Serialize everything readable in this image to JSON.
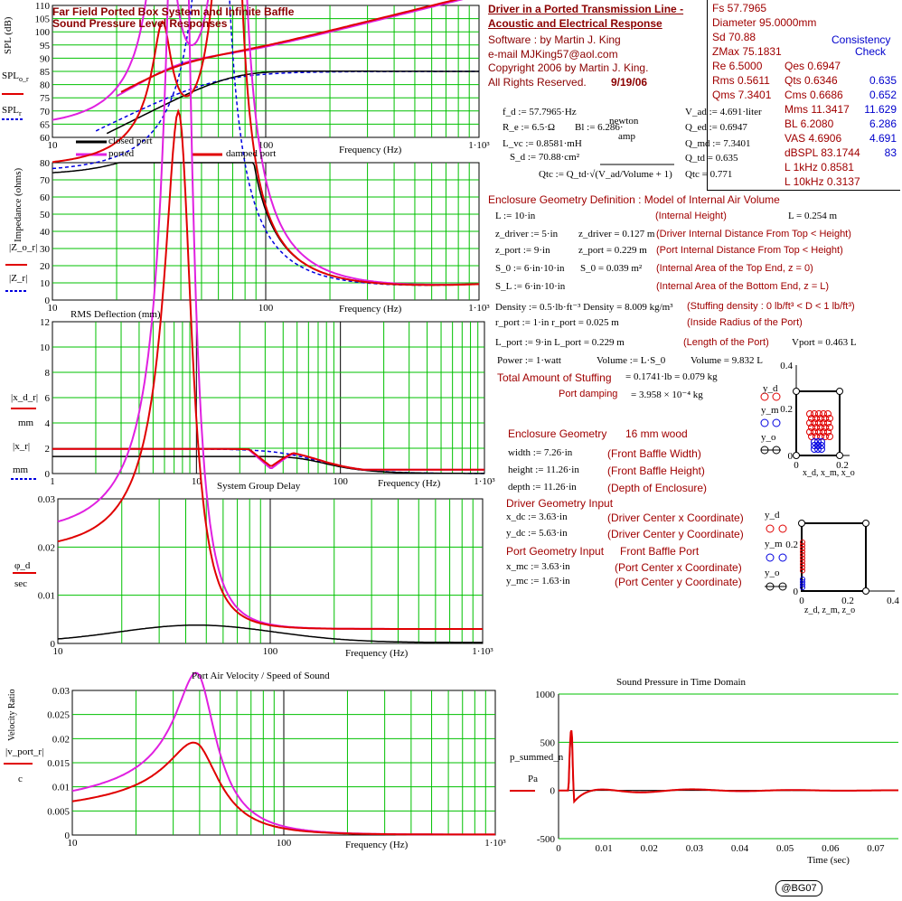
{
  "spl_panel": {
    "title_line1": "Far Field Ported Box System and Infinite Baffle",
    "title_line2": "Sound Pressure Level Responses",
    "ylabel": "SPL (dB)",
    "label_spl_o": "SPL",
    "label_spl_o_sub": "o_r",
    "label_spl_r": "SPL",
    "label_spl_r_sub": "r",
    "yticks": [
      "110",
      "105",
      "100",
      "95",
      "90",
      "85",
      "80",
      "75",
      "70",
      "65",
      "60"
    ],
    "xticks": [
      "10",
      "100",
      "1·10³"
    ],
    "xlabel": "Frequency (Hz)",
    "legend": [
      "closed port",
      "ported",
      "damped port"
    ]
  },
  "imp_panel": {
    "ylabel": "Impedance (ohms)",
    "label1": "|Z_o_r|",
    "label2": "|Z_r|",
    "yticks": [
      "80",
      "70",
      "60",
      "50",
      "40",
      "30",
      "20",
      "10",
      "0"
    ],
    "xticks": [
      "10",
      "100",
      "1·10³"
    ],
    "xlabel": "Frequency (Hz)"
  },
  "rms_panel": {
    "title": "RMS Deflection (mm)",
    "label1": "|x_d_r|",
    "label2": "|x_r|",
    "unit": "mm",
    "yticks": [
      "12",
      "10",
      "8",
      "6",
      "4",
      "2",
      "0"
    ],
    "xticks": [
      "1",
      "10",
      "100",
      "1·10³"
    ],
    "xlabel": "Frequency (Hz)"
  },
  "gd_panel": {
    "title": "System Group Delay",
    "label": "φ_d",
    "unit": "sec",
    "yticks": [
      "0.03",
      "0.02",
      "0.01",
      "0"
    ],
    "xticks": [
      "10",
      "100",
      "1·10³"
    ],
    "xlabel": "Frequency (Hz)"
  },
  "vel_panel": {
    "title": "Port Air Velocity / Speed of Sound",
    "ylabel": "Velocity Ratio",
    "label": "|v_port_r|",
    "unit": "c",
    "yticks": [
      "0.03",
      "0.025",
      "0.02",
      "0.015",
      "0.01",
      "0.005",
      "0"
    ],
    "xticks": [
      "10",
      "100",
      "1·10³"
    ],
    "xlabel": "Frequency (Hz)"
  },
  "time_panel": {
    "title": "Sound Pressure in Time Domain",
    "label": "p_summed_n",
    "unit": "Pa",
    "yticks": [
      "1000",
      "500",
      "0",
      "-500"
    ],
    "xticks": [
      "0",
      "0.01",
      "0.02",
      "0.03",
      "0.04",
      "0.05",
      "0.06",
      "0.07"
    ],
    "xlabel": "Time (sec)"
  },
  "header": {
    "title_line1": "Driver in a Ported Transmission Line -",
    "title_line2": "Acoustic and Electrical Response",
    "software": "Software :      by        Martin J. King",
    "email": "e-mail  MJKing57@aol.com",
    "copyright": "Copyright 2006 by Martin J. King.",
    "rights": "All Rights Reserved.",
    "date": "9/19/06"
  },
  "params": {
    "fs": "Fs 57.7965",
    "diameter": "Diameter 95.0000mm",
    "sd": "Sd 70.88",
    "zmax": "ZMax 75.1831",
    "consistency": "Consistency",
    "check": "Check",
    "rows": [
      {
        "a": "Re 6.5000",
        "b": "Qes 0.6947",
        "c": ""
      },
      {
        "a": "Rms 0.5611",
        "b": "Qts 0.6346",
        "c": "0.635"
      },
      {
        "a": "Qms 7.3401",
        "b": "Cms 0.6686",
        "c": "0.652"
      },
      {
        "a": "",
        "b": "Mms 11.3417",
        "c": "11.629"
      },
      {
        "a": "",
        "b": "BL 6.2080",
        "c": "6.286"
      },
      {
        "a": "",
        "b": "VAS 4.6906",
        "c": "4.691"
      },
      {
        "a": "",
        "b": "dBSPL 83.1744",
        "c": "83"
      },
      {
        "a": "",
        "b": "L 1kHz 0.8581",
        "c": ""
      },
      {
        "a": "",
        "b": "L 10kHz 0.3137",
        "c": ""
      }
    ]
  },
  "driver_params": {
    "fd": "f_d := 57.7965·Hz",
    "re": "R_e := 6.5·Ω",
    "bl": "Bl := 6.286·",
    "bl_unit_top": "newton",
    "bl_unit_bot": "amp",
    "lvc": "L_vc := 0.8581·mH",
    "sd": "S_d := 70.88·cm²",
    "vad": "V_ad := 4.691·liter",
    "qed": "Q_ed := 0.6947",
    "qmd": "Q_md := 7.3401",
    "qtd": "Q_td = 0.635",
    "qtc_formula": "Qtc := Q_td·√(V_ad/Volume + 1)",
    "qtc": "Qtc = 0.771"
  },
  "enclosure": {
    "title": "Enclosure Geometry Definition : Model of Internal Air Volume",
    "rows": [
      {
        "l": "L := 10·in",
        "m": "",
        "r": "(Internal Height)",
        "v": "L = 0.254 m"
      },
      {
        "l": "z_driver := 5·in",
        "m": "z_driver = 0.127 m",
        "r": "(Driver Internal Distance From Top < Height)",
        "v": ""
      },
      {
        "l": "z_port := 9·in",
        "m": "z_port = 0.229 m",
        "r": "(Port Internal Distance From Top < Height)",
        "v": ""
      },
      {
        "l": "S_0 := 6·in·10·in",
        "m": "S_0 = 0.039 m²",
        "r": "(Internal Area of the Top End, z = 0)",
        "v": ""
      },
      {
        "l": "S_L := 6·in·10·in",
        "m": "",
        "r": "(Internal Area of the Bottom End, z = L)",
        "v": ""
      }
    ],
    "density": "Density := 0.5·lb·ft⁻³  Density = 8.009 kg/m³",
    "density_note": "(Stuffing density : 0 lb/ft³ < D < 1 lb/ft³)",
    "rport": "r_port := 1·in          r_port = 0.025 m",
    "rport_note": "(Inside Radius of the Port)",
    "lport": "L_port := 9·in          L_port = 0.229 m",
    "lport_note": "(Length of the Port)",
    "vport": "Vport = 0.463 L",
    "power": "Power := 1·watt",
    "volume": "Volume := L·S_0",
    "volume_val": "Volume = 9.832 L",
    "stuffing_label": "Total Amount of Stuffing",
    "stuffing_val": "= 0.1741·lb = 0.079 kg",
    "damping_label": "Port damping",
    "damping_val": "= 3.958 × 10⁻⁴ kg"
  },
  "geometry": {
    "title": "Enclosure Geometry",
    "wood": "16 mm wood",
    "rows": [
      {
        "l": "width := 7.26·in",
        "r": "(Front Baffle Width)"
      },
      {
        "l": "height := 11.26·in",
        "r": "(Front Baffle Height)"
      },
      {
        "l": "depth := 11.26·in",
        "r": "(Depth of Enclosure)"
      }
    ],
    "driver_title": "Driver Geometry Input",
    "driver_rows": [
      {
        "l": "x_dc := 3.63·in",
        "r": "(Driver Center x Coordinate)"
      },
      {
        "l": "y_dc := 5.63·in",
        "r": "(Driver Center y Coordinate)"
      }
    ],
    "port_title": "Port Geometry Input",
    "port_sub": "Front Baffle Port",
    "port_rows": [
      {
        "l": "x_mc := 3.63·in",
        "r": "(Port Center x Coordinate)"
      },
      {
        "l": "y_mc := 1.63·in",
        "r": "(Port Center y Coordinate)"
      }
    ]
  },
  "mini1": {
    "yticks": [
      "0.4",
      "0.2",
      "0"
    ],
    "xticks": [
      "0",
      "0.2"
    ],
    "xlabel": "x_d, x_m, x_o",
    "labels": [
      "y_d",
      "y_m",
      "y_o"
    ]
  },
  "mini2": {
    "yticks": [
      "0.2",
      "0"
    ],
    "xticks": [
      "0",
      "0.2",
      "0.4"
    ],
    "xlabel": "z_d, z_m, z_o",
    "labels": [
      "y_d",
      "y_m",
      "y_o"
    ]
  },
  "badge": "@BG07",
  "colors": {
    "closed": "#000000",
    "ported": "#e020e0",
    "damped": "#e00000",
    "infinite": "#0000e0",
    "grid": "#00c000"
  }
}
